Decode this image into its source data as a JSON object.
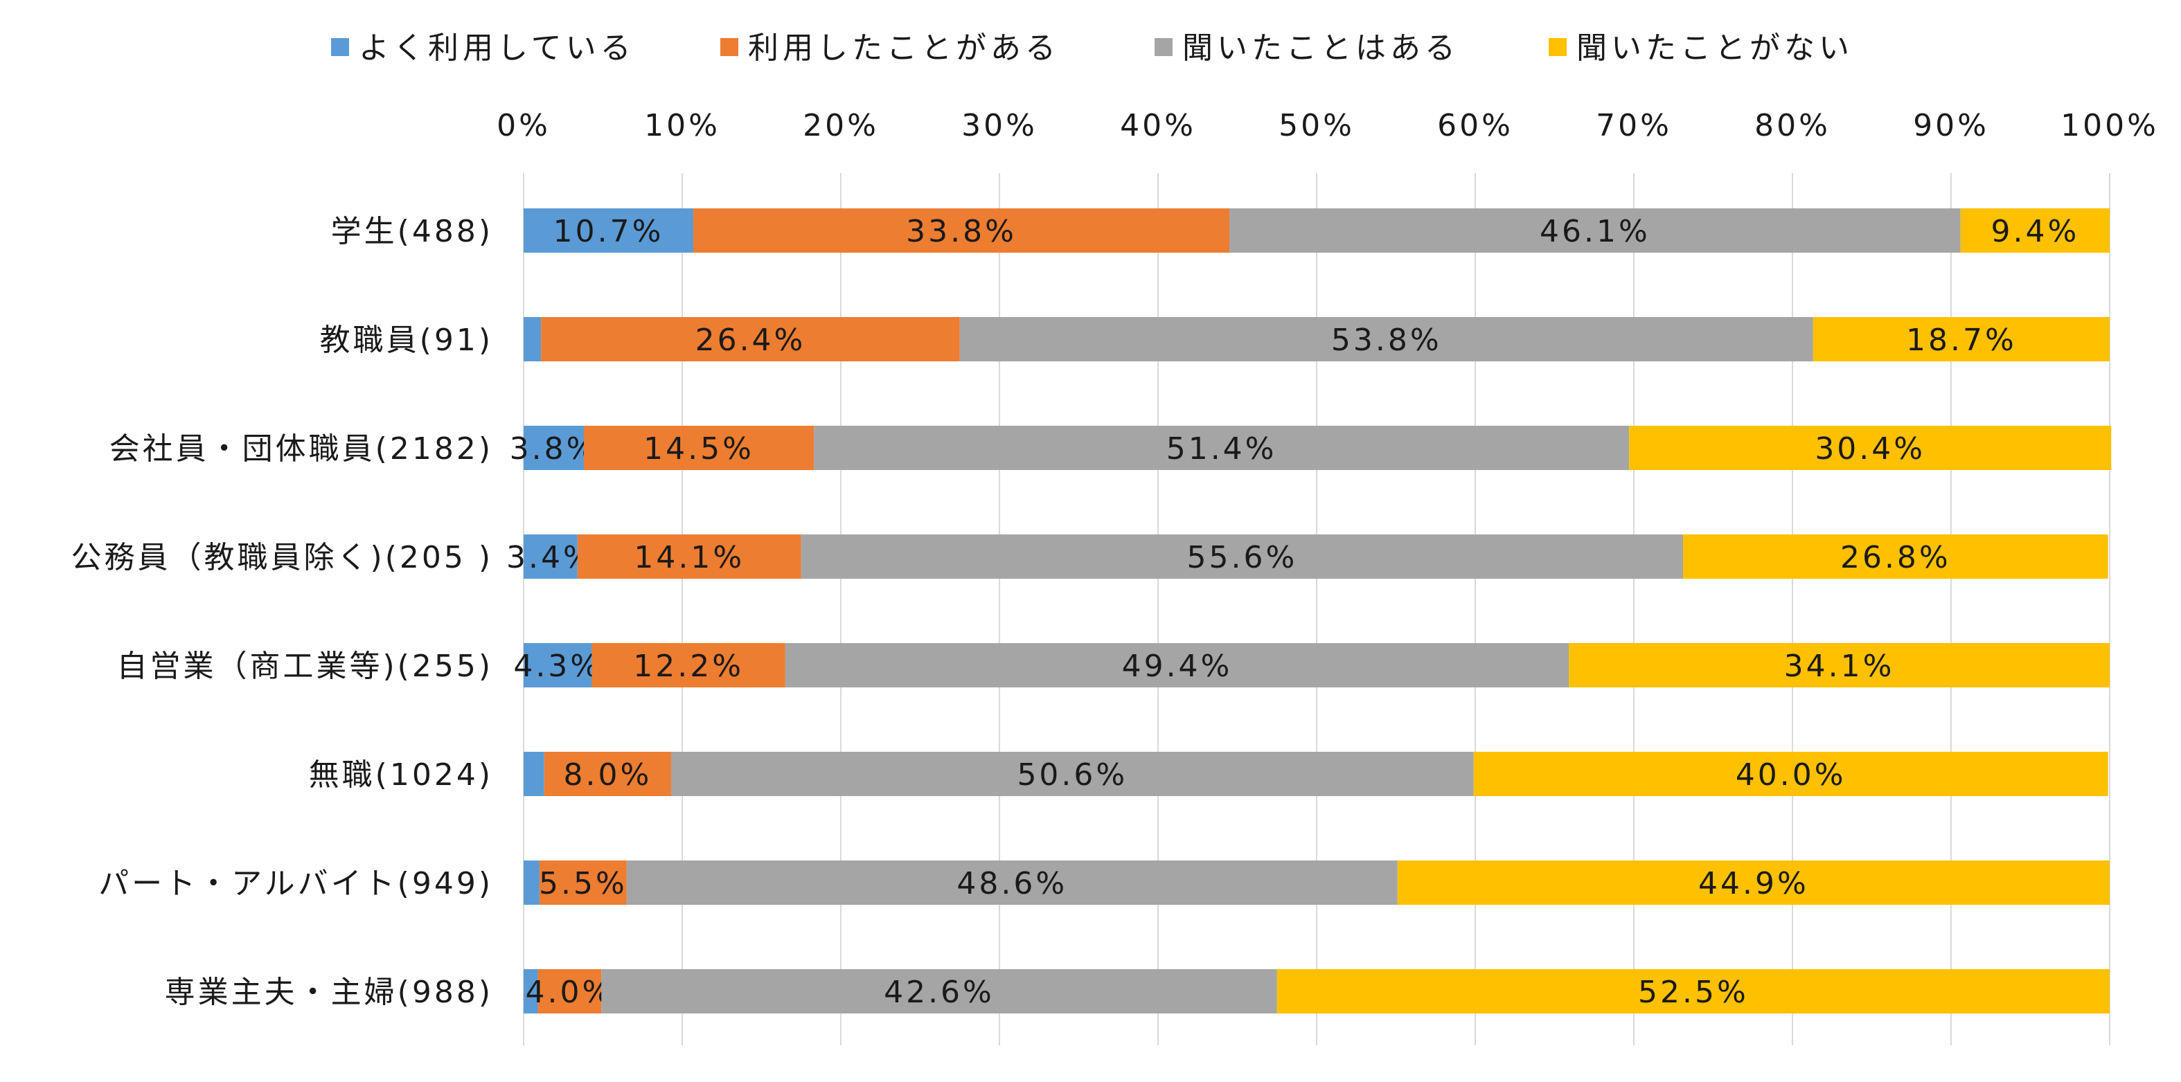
{
  "chart_data": {
    "type": "bar",
    "orientation": "horizontal",
    "stacked": true,
    "percent_scale": true,
    "xlim": [
      0,
      100
    ],
    "x_ticks": [
      "0%",
      "10%",
      "20%",
      "30%",
      "40%",
      "50%",
      "60%",
      "70%",
      "80%",
      "90%",
      "100%"
    ],
    "grid": true,
    "legend_position": "top",
    "categories": [
      "学生(488)",
      "教職員(91)",
      "会社員・団体職員(2182)",
      "公務員（教職員除く)(205 )",
      "自営業（商工業等)(255)",
      "無職(1024)",
      "パート・アルバイト(949)",
      "専業主夫・主婦(988)"
    ],
    "series": [
      {
        "name": "よく利用している",
        "color": "#5B9BD5",
        "values": [
          10.7,
          1.1,
          3.8,
          3.4,
          4.3,
          1.3,
          1.0,
          0.9
        ],
        "labels": [
          "10.7%",
          "",
          "3.8%",
          "3.4%",
          "4.3%",
          "",
          "",
          ""
        ]
      },
      {
        "name": "利用したことがある",
        "color": "#ED7D31",
        "values": [
          33.8,
          26.4,
          14.5,
          14.1,
          12.2,
          8.0,
          5.5,
          4.0
        ],
        "labels": [
          "33.8%",
          "26.4%",
          "14.5%",
          "14.1%",
          "12.2%",
          "8.0%",
          "5.5%",
          "4.0%"
        ]
      },
      {
        "name": "聞いたことはある",
        "color": "#A5A5A5",
        "values": [
          46.1,
          53.8,
          51.4,
          55.6,
          49.4,
          50.6,
          48.6,
          42.6
        ],
        "labels": [
          "46.1%",
          "53.8%",
          "51.4%",
          "55.6%",
          "49.4%",
          "50.6%",
          "48.6%",
          "42.6%"
        ]
      },
      {
        "name": "聞いたことがない",
        "color": "#FFC000",
        "values": [
          9.4,
          18.7,
          30.4,
          26.8,
          34.1,
          40.0,
          44.9,
          52.5
        ],
        "labels": [
          "9.4%",
          "18.7%",
          "30.4%",
          "26.8%",
          "34.1%",
          "40.0%",
          "44.9%",
          "52.5%"
        ]
      }
    ]
  }
}
